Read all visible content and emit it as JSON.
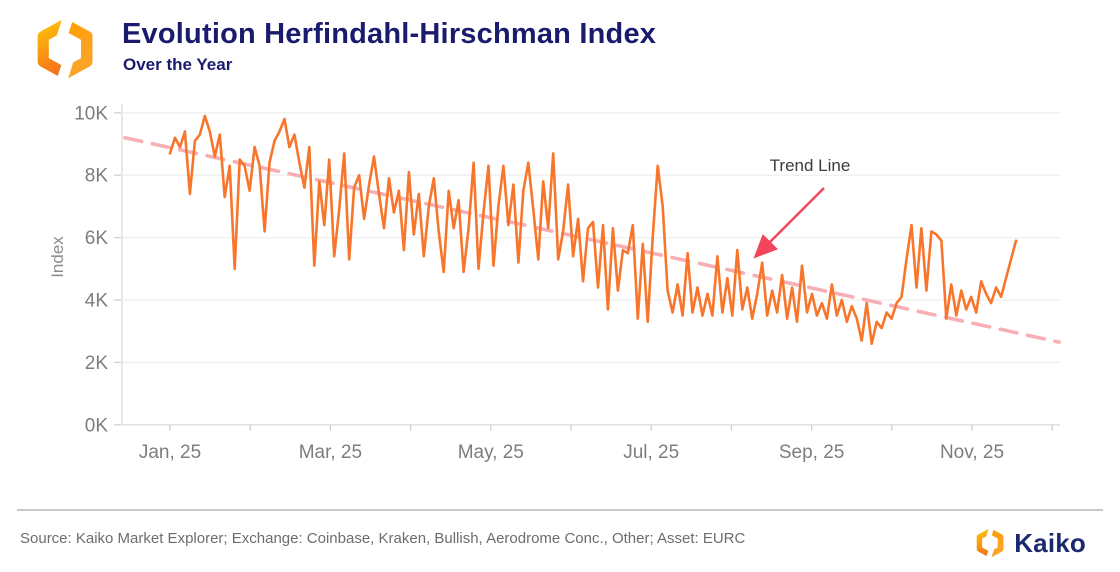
{
  "header": {
    "title": "Evolution Herfindahl-Hirschman Index",
    "subtitle": "Over the Year"
  },
  "footer": {
    "source": "Source: Kaiko Market Explorer; Exchange: Coinbase, Kraken, Bullish, Aerodrome Conc., Other; Asset: EURC",
    "brand": "Kaiko"
  },
  "colors": {
    "navy": "#1b1b6e",
    "series_orange": "#f8762b",
    "trend_pink": "#f8a6ad",
    "arrow_red": "#f0455a",
    "tick_gray": "#7d7d7d",
    "grid_gray": "#efefef",
    "axis_gray": "#dcdcdc"
  },
  "chart_data": {
    "type": "line",
    "title": "Evolution Herfindahl-Hirschman Index",
    "subtitle": "Over the Year",
    "ylabel": "Index",
    "ylim_k": [
      0,
      10
    ],
    "y_ticks": [
      "0K",
      "2K",
      "4K",
      "6K",
      "8K",
      "10K"
    ],
    "x_tick_labels": [
      "Jan, 25",
      "Mar, 25",
      "May, 25",
      "Jul, 25",
      "Sep, 25",
      "Nov, 25"
    ],
    "x_months_per_tick": 2,
    "grid": "horizontal",
    "legend": "none",
    "annotation": {
      "label": "Trend Line"
    },
    "trend_line": {
      "style": "dashed",
      "start_value_k": 9.2,
      "end_value_k": 2.65
    },
    "series": [
      {
        "name": "Herfindahl-Hirschman Index (thousands)",
        "period": "Jan 2025 to mid-Nov 2025",
        "sampling": "approx. every 2 days",
        "values_k": [
          8.7,
          9.2,
          8.9,
          9.4,
          7.4,
          9.1,
          9.3,
          9.9,
          9.4,
          8.6,
          9.3,
          7.3,
          8.3,
          5.0,
          8.5,
          8.3,
          7.5,
          8.9,
          8.3,
          6.2,
          8.4,
          9.1,
          9.4,
          9.8,
          8.9,
          9.3,
          8.4,
          7.6,
          8.9,
          5.1,
          7.8,
          6.4,
          8.5,
          5.4,
          6.9,
          8.7,
          5.3,
          7.6,
          8.0,
          6.6,
          7.7,
          8.6,
          7.4,
          6.3,
          7.9,
          6.8,
          7.5,
          5.6,
          8.1,
          6.1,
          7.4,
          5.4,
          7.0,
          7.9,
          6.2,
          4.9,
          7.5,
          6.3,
          7.2,
          4.9,
          6.3,
          8.4,
          5.0,
          6.8,
          8.3,
          5.1,
          7.0,
          8.3,
          6.4,
          7.7,
          5.2,
          7.5,
          8.4,
          6.9,
          5.3,
          7.8,
          6.3,
          8.7,
          5.3,
          6.2,
          7.7,
          5.4,
          6.6,
          4.6,
          6.3,
          6.5,
          4.4,
          6.4,
          3.7,
          6.3,
          4.3,
          5.6,
          5.5,
          6.4,
          3.4,
          5.8,
          3.3,
          6.0,
          8.3,
          7.0,
          4.3,
          3.6,
          4.5,
          3.5,
          5.5,
          3.6,
          4.4,
          3.5,
          4.2,
          3.5,
          5.4,
          3.6,
          4.7,
          3.5,
          5.6,
          3.7,
          4.4,
          3.4,
          4.2,
          5.2,
          3.5,
          4.3,
          3.6,
          4.8,
          3.4,
          4.4,
          3.3,
          5.1,
          3.6,
          4.2,
          3.5,
          3.9,
          3.4,
          4.5,
          3.5,
          4.0,
          3.3,
          3.8,
          3.4,
          2.7,
          3.9,
          2.6,
          3.3,
          3.1,
          3.6,
          3.4,
          3.9,
          4.1,
          5.3,
          6.4,
          4.4,
          6.3,
          4.3,
          6.2,
          6.1,
          5.9,
          3.4,
          4.5,
          3.5,
          4.3,
          3.7,
          4.1,
          3.6,
          4.6,
          4.2,
          3.9,
          4.4,
          4.1,
          4.7,
          5.3,
          5.9
        ]
      }
    ]
  }
}
